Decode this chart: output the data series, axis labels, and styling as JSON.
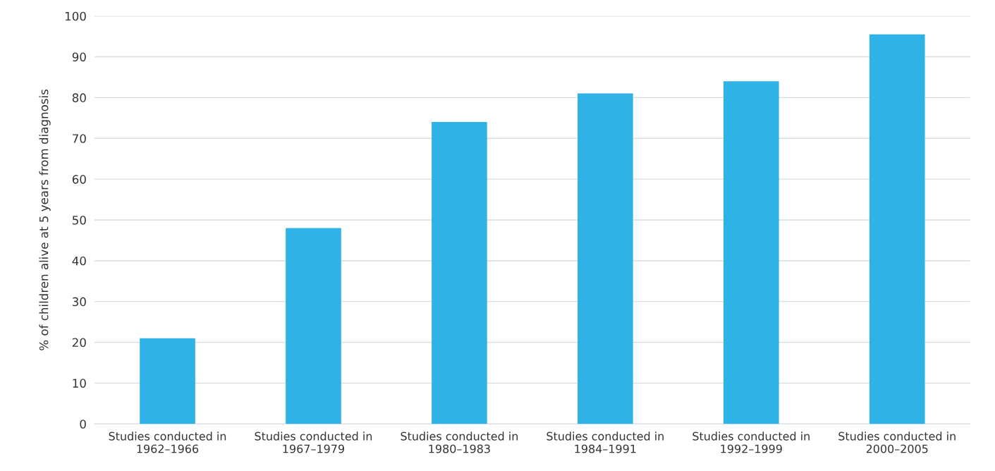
{
  "chart_data": {
    "type": "bar",
    "ylabel": "% of children alive at 5 years from diagnosis",
    "categories": [
      "Studies conducted in\n1962–1966",
      "Studies conducted in\n1967–1979",
      "Studies conducted in\n1980–1983",
      "Studies conducted in\n1984–1991",
      "Studies conducted in\n1992–1999",
      "Studies conducted in\n2000–2005"
    ],
    "values": [
      21,
      48,
      74,
      81,
      84,
      95.5
    ],
    "color": "#2fb2e6",
    "ylim": [
      0,
      100
    ],
    "yticks": [
      0,
      10,
      20,
      30,
      40,
      50,
      60,
      70,
      80,
      90,
      100
    ],
    "grid": "y"
  }
}
